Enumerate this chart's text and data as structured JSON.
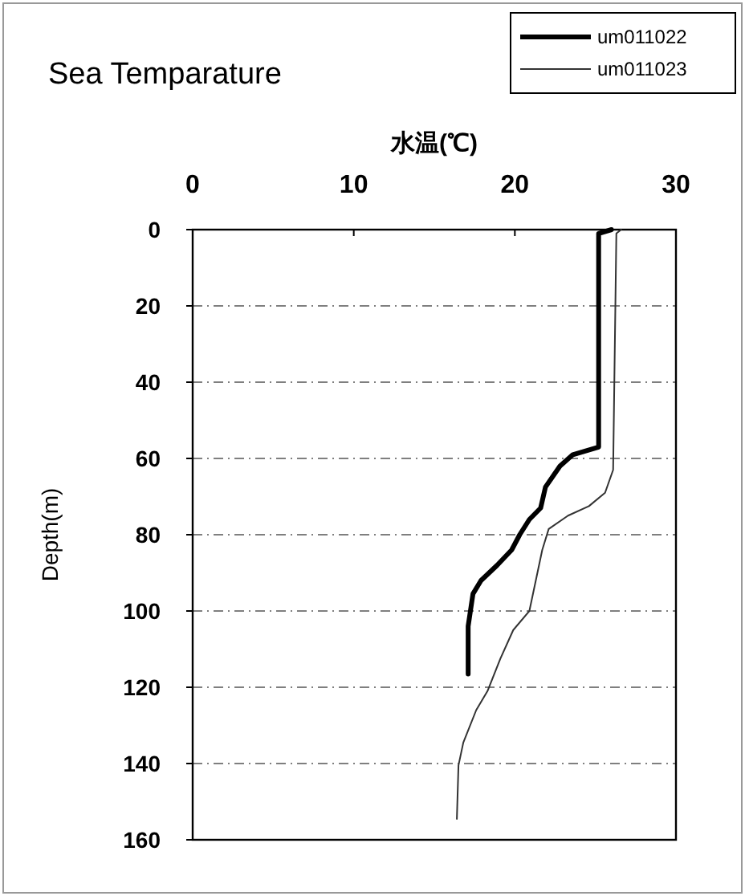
{
  "chart_data": {
    "type": "line",
    "title": "Sea Temparature",
    "xlabel": "水温(℃)",
    "ylabel": "Depth(m)",
    "xlim": [
      0,
      30
    ],
    "xticks": [
      0,
      10,
      20,
      30
    ],
    "ylim": [
      160,
      0
    ],
    "yticks": [
      0,
      20,
      40,
      60,
      80,
      100,
      120,
      140,
      160
    ],
    "grid": "y",
    "legend": "top right",
    "marker": "none",
    "line_style": "solid",
    "series": [
      {
        "name": "um011022",
        "color": "#000000",
        "x": [
          26,
          25.2,
          25.2,
          23.6,
          22.8,
          21.9,
          21.6,
          20.9,
          20.3,
          19.8,
          18.9,
          17.9,
          17.4,
          17.1,
          17.1
        ],
        "values": [
          0,
          1,
          57,
          59,
          62,
          67.5,
          73,
          76,
          80,
          84,
          88,
          92,
          95.5,
          104,
          116.5
        ]
      },
      {
        "name": "um011023",
        "color": "#333333",
        "x": [
          26.6,
          26.3,
          26.1,
          25.6,
          24.6,
          23.3,
          22.1,
          21.7,
          20.9,
          19.9,
          19.1,
          18.3,
          17.6,
          16.8,
          16.5,
          16.4
        ],
        "values": [
          0,
          1,
          63,
          69,
          72.5,
          75,
          78.5,
          84,
          100,
          105,
          112.5,
          121,
          126,
          134.5,
          140.5,
          154.5
        ]
      }
    ]
  }
}
